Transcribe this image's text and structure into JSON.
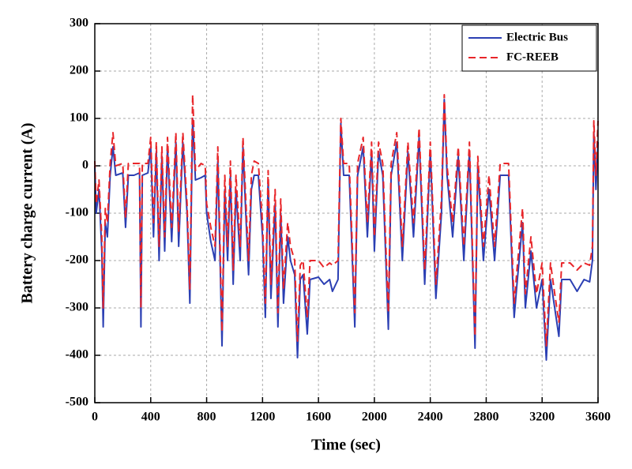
{
  "chart_data": {
    "type": "line",
    "x_label": "Time (sec)",
    "y_label": "Battery charge current (A)",
    "xlim": [
      0,
      3600
    ],
    "xticks": [
      0,
      400,
      800,
      1200,
      1600,
      2000,
      2400,
      2800,
      3200,
      3600
    ],
    "ylim": [
      -500,
      300
    ],
    "yticks": [
      -500,
      -400,
      -300,
      -200,
      -100,
      0,
      100,
      200,
      300
    ],
    "grid": true,
    "legend": "upper right",
    "x": [
      0,
      10,
      30,
      50,
      60,
      75,
      90,
      110,
      130,
      150,
      200,
      220,
      240,
      280,
      320,
      330,
      340,
      380,
      400,
      420,
      440,
      460,
      480,
      500,
      520,
      550,
      580,
      600,
      630,
      660,
      680,
      700,
      720,
      760,
      790,
      800,
      830,
      860,
      880,
      910,
      930,
      950,
      970,
      990,
      1010,
      1040,
      1060,
      1080,
      1100,
      1120,
      1140,
      1170,
      1200,
      1220,
      1240,
      1260,
      1290,
      1310,
      1330,
      1350,
      1380,
      1400,
      1430,
      1450,
      1470,
      1490,
      1520,
      1540,
      1600,
      1640,
      1680,
      1700,
      1740,
      1760,
      1780,
      1820,
      1860,
      1880,
      1920,
      1950,
      1980,
      2000,
      2030,
      2060,
      2100,
      2120,
      2160,
      2200,
      2240,
      2280,
      2320,
      2360,
      2400,
      2440,
      2480,
      2500,
      2520,
      2560,
      2600,
      2640,
      2680,
      2720,
      2740,
      2780,
      2820,
      2860,
      2900,
      2960,
      3000,
      3020,
      3060,
      3080,
      3120,
      3160,
      3200,
      3230,
      3260,
      3290,
      3320,
      3340,
      3400,
      3450,
      3500,
      3540,
      3560,
      3570,
      3585,
      3600
    ],
    "series": [
      {
        "name": "Electric Bus",
        "color": "#2b3fb3",
        "dash": false,
        "values": [
          0,
          -100,
          -50,
          -180,
          -340,
          -120,
          -150,
          -20,
          40,
          -20,
          -15,
          -130,
          -20,
          -20,
          -15,
          -340,
          -20,
          -15,
          40,
          -150,
          30,
          -200,
          20,
          -180,
          40,
          -160,
          50,
          -170,
          50,
          -100,
          -290,
          100,
          -30,
          -25,
          -20,
          -100,
          -160,
          -200,
          10,
          -380,
          -50,
          -200,
          -20,
          -250,
          -50,
          -200,
          40,
          -100,
          -230,
          -50,
          -20,
          -20,
          -150,
          -320,
          -30,
          -280,
          -80,
          -340,
          -100,
          -290,
          -150,
          -200,
          -230,
          -405,
          -240,
          -230,
          -355,
          -240,
          -235,
          -250,
          -240,
          -265,
          -240,
          90,
          -20,
          -20,
          -340,
          -20,
          40,
          -150,
          30,
          -180,
          30,
          -20,
          -345,
          -20,
          50,
          -200,
          30,
          -150,
          60,
          -250,
          30,
          -280,
          -100,
          140,
          -20,
          -150,
          20,
          -200,
          30,
          -385,
          0,
          -200,
          -50,
          -200,
          -20,
          -20,
          -320,
          -250,
          -120,
          -300,
          -180,
          -300,
          -240,
          -410,
          -240,
          -300,
          -360,
          -240,
          -240,
          -265,
          -240,
          -245,
          -200,
          70,
          -50,
          50
        ]
      },
      {
        "name": "FC-REEB",
        "color": "#e8262a",
        "dash": true,
        "values": [
          10,
          -80,
          -30,
          -150,
          -300,
          -90,
          -120,
          5,
          70,
          0,
          5,
          -110,
          5,
          5,
          5,
          -300,
          5,
          5,
          60,
          -120,
          50,
          -170,
          40,
          -150,
          60,
          -130,
          70,
          -140,
          70,
          -80,
          -260,
          150,
          -10,
          5,
          0,
          -80,
          -130,
          -170,
          40,
          -350,
          -20,
          -170,
          10,
          -220,
          -20,
          -170,
          60,
          -70,
          -200,
          -20,
          10,
          5,
          -120,
          -290,
          -10,
          -250,
          -50,
          -310,
          -70,
          -260,
          -120,
          -170,
          -200,
          -370,
          -210,
          -200,
          -320,
          -200,
          -200,
          -215,
          -205,
          -210,
          -200,
          100,
          5,
          5,
          -310,
          5,
          60,
          -120,
          50,
          -150,
          50,
          5,
          -310,
          5,
          70,
          -170,
          50,
          -120,
          80,
          -220,
          50,
          -250,
          -70,
          150,
          0,
          -120,
          40,
          -170,
          50,
          -360,
          20,
          -170,
          -20,
          -170,
          5,
          5,
          -290,
          -220,
          -90,
          -270,
          -150,
          -270,
          -205,
          -380,
          -205,
          -270,
          -330,
          -205,
          -205,
          -220,
          -205,
          -210,
          -170,
          95,
          -20,
          95
        ]
      }
    ]
  }
}
